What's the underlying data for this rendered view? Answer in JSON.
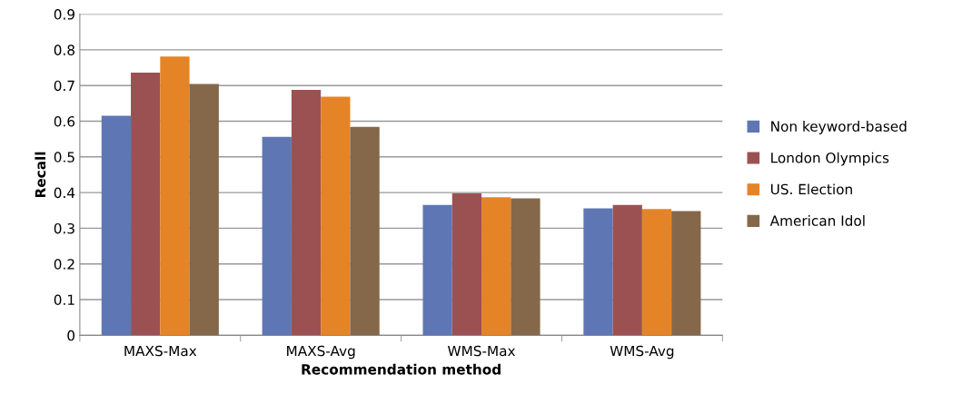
{
  "chart_data": {
    "type": "bar",
    "xlabel": "Recommendation method",
    "ylabel": "Recall",
    "categories": [
      "MAXS-Max",
      "MAXS-Avg",
      "WMS-Max",
      "WMS-Avg"
    ],
    "series": [
      {
        "name": "Non keyword-based",
        "color": "#5e76b4",
        "values": [
          0.615,
          0.556,
          0.365,
          0.356
        ]
      },
      {
        "name": "London Olympics",
        "color": "#9b5152",
        "values": [
          0.736,
          0.688,
          0.398,
          0.365
        ]
      },
      {
        "name": "US. Election",
        "color": "#e58426",
        "values": [
          0.781,
          0.669,
          0.387,
          0.354
        ]
      },
      {
        "name": "American Idol",
        "color": "#85674a",
        "values": [
          0.704,
          0.584,
          0.384,
          0.348
        ]
      }
    ],
    "ylim": [
      0,
      0.9
    ],
    "yticks": [
      {
        "value": 0,
        "label": "0"
      },
      0.1,
      0.2,
      0.3,
      0.4,
      0.5,
      0.6,
      0.7,
      0.8,
      0.9
    ],
    "grid": "y",
    "legend": "right"
  }
}
